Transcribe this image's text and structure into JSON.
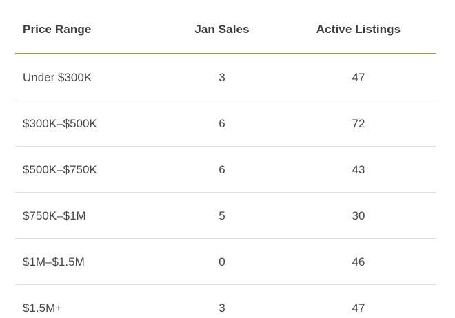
{
  "colors": {
    "accent_gold": "#a89353",
    "row_divider": "#e0e0e0",
    "header_text": "#3c3c3c",
    "cell_text": "#454545",
    "background": "#ffffff"
  },
  "chart_data": {
    "type": "table",
    "title": "",
    "columns": [
      "Price Range",
      "Jan Sales",
      "Active Listings"
    ],
    "rows": [
      [
        "Under $300K",
        "3",
        "47"
      ],
      [
        "$300K–$500K",
        "6",
        "72"
      ],
      [
        "$500K–$750K",
        "6",
        "43"
      ],
      [
        "$750K–$1M",
        "5",
        "30"
      ],
      [
        "$1M–$1.5M",
        "0",
        "46"
      ],
      [
        "$1.5M+",
        "3",
        "47"
      ]
    ]
  }
}
